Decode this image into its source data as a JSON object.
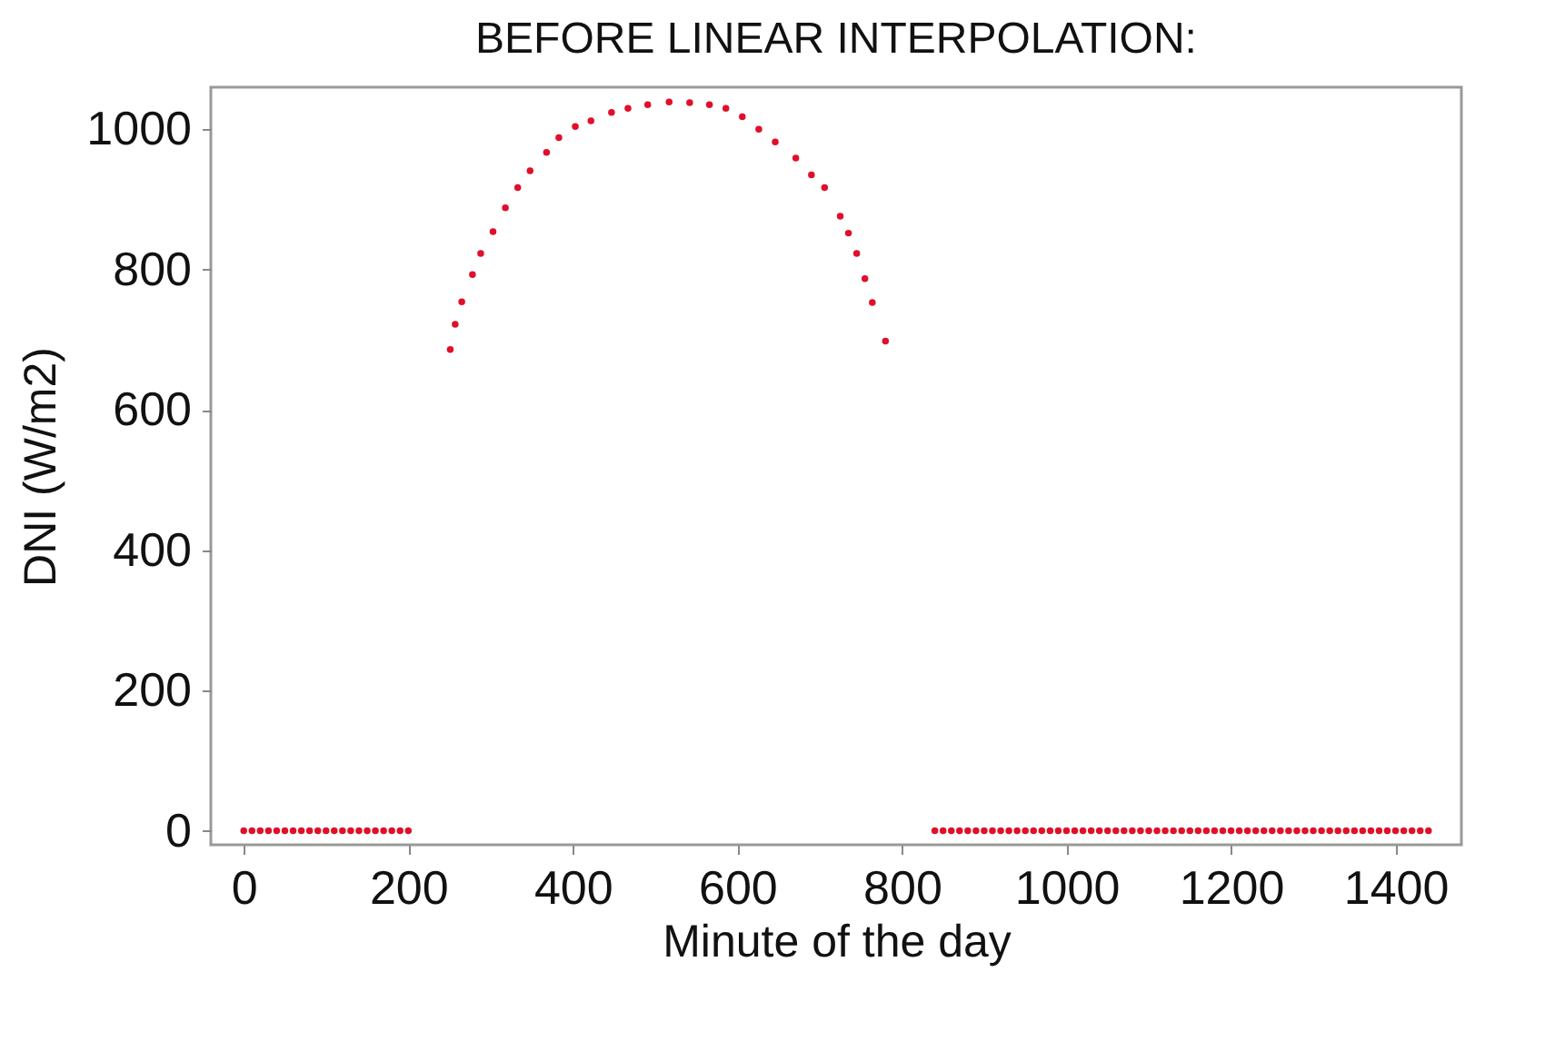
{
  "chart_data": {
    "type": "scatter",
    "title": "BEFORE LINEAR INTERPOLATION:",
    "xlabel": "Minute of the day",
    "ylabel": "DNI (W/m2)",
    "marker": "circle",
    "grid": false,
    "xlim": [
      -40,
      1480
    ],
    "xticks": [
      0,
      200,
      400,
      600,
      800,
      1000,
      1200,
      1400
    ],
    "ylim": [
      -20,
      1060
    ],
    "yticks": [
      0,
      200,
      400,
      600,
      800,
      1000
    ],
    "series": [
      {
        "color": "#e0102a",
        "x": [
          0,
          10,
          20,
          30,
          40,
          50,
          60,
          70,
          80,
          90,
          100,
          110,
          120,
          130,
          140,
          150,
          160,
          170,
          180,
          190,
          200,
          251,
          257,
          265,
          278,
          288,
          303,
          318,
          333,
          348,
          368,
          383,
          403,
          422,
          447,
          467,
          491,
          517,
          542,
          566,
          586,
          606,
          626,
          646,
          671,
          690,
          706,
          725,
          735,
          745,
          755,
          764,
          780,
          840,
          850,
          860,
          870,
          880,
          890,
          900,
          910,
          920,
          930,
          940,
          950,
          960,
          970,
          980,
          990,
          1000,
          1010,
          1020,
          1030,
          1040,
          1050,
          1060,
          1070,
          1080,
          1090,
          1100,
          1110,
          1120,
          1130,
          1140,
          1150,
          1160,
          1170,
          1180,
          1190,
          1200,
          1210,
          1220,
          1230,
          1240,
          1250,
          1260,
          1270,
          1280,
          1290,
          1300,
          1310,
          1320,
          1330,
          1340,
          1350,
          1360,
          1370,
          1380,
          1390,
          1400,
          1410,
          1420,
          1430,
          1440
        ],
        "values": [
          0,
          0,
          0,
          0,
          0,
          0,
          0,
          0,
          0,
          0,
          0,
          0,
          0,
          0,
          0,
          0,
          0,
          0,
          0,
          0,
          0,
          686,
          722,
          754,
          793,
          823,
          854,
          888,
          917,
          941,
          967,
          988,
          1004,
          1012,
          1024,
          1030,
          1035,
          1039,
          1038,
          1035,
          1030,
          1018,
          1000,
          982,
          959,
          935,
          917,
          876,
          852,
          823,
          787,
          753,
          698,
          0,
          0,
          0,
          0,
          0,
          0,
          0,
          0,
          0,
          0,
          0,
          0,
          0,
          0,
          0,
          0,
          0,
          0,
          0,
          0,
          0,
          0,
          0,
          0,
          0,
          0,
          0,
          0,
          0,
          0,
          0,
          0,
          0,
          0,
          0,
          0,
          0,
          0,
          0,
          0,
          0,
          0,
          0,
          0,
          0,
          0,
          0,
          0,
          0,
          0,
          0,
          0,
          0,
          0,
          0,
          0,
          0,
          0,
          0,
          0,
          0
        ]
      }
    ]
  }
}
